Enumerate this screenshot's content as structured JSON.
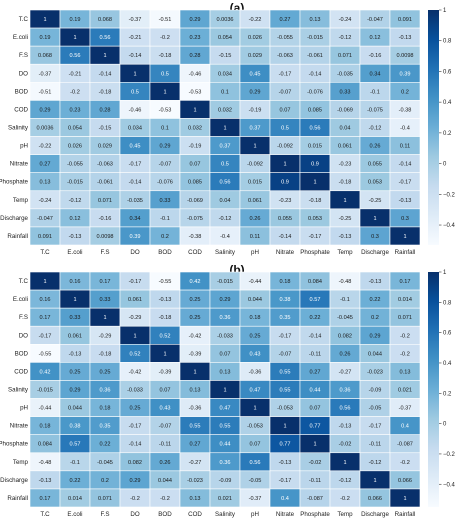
{
  "chart_data": [
    {
      "type": "heatmap",
      "panel_label": "(a)",
      "labels": [
        "T.C",
        "E.coli",
        "F.S",
        "DO",
        "BOD",
        "COD",
        "Salinity",
        "pH",
        "Nitrate",
        "Phosphate",
        "Temp",
        "Discharge",
        "Rainfall"
      ],
      "matrix": [
        [
          1,
          0.19,
          0.068,
          -0.37,
          -0.51,
          0.29,
          0.0036,
          -0.22,
          0.27,
          0.13,
          -0.24,
          -0.047,
          0.091
        ],
        [
          0.19,
          1,
          0.56,
          -0.21,
          -0.2,
          0.23,
          0.054,
          0.026,
          -0.055,
          -0.015,
          -0.12,
          0.12,
          -0.13
        ],
        [
          0.068,
          0.56,
          1,
          -0.14,
          -0.18,
          0.28,
          -0.15,
          0.029,
          -0.063,
          -0.061,
          0.071,
          -0.16,
          0.0098
        ],
        [
          -0.37,
          -0.21,
          -0.14,
          1,
          0.5,
          -0.46,
          0.034,
          0.45,
          -0.17,
          -0.14,
          -0.035,
          0.34,
          0.39
        ],
        [
          -0.51,
          -0.2,
          -0.18,
          0.5,
          1,
          -0.53,
          0.1,
          0.29,
          -0.07,
          -0.076,
          0.33,
          -0.1,
          0.2
        ],
        [
          0.29,
          0.23,
          0.28,
          -0.46,
          -0.53,
          1,
          0.032,
          -0.19,
          0.07,
          0.085,
          -0.069,
          -0.075,
          -0.38
        ],
        [
          0.0036,
          0.054,
          -0.15,
          0.034,
          0.1,
          0.032,
          1,
          0.37,
          0.5,
          0.56,
          0.04,
          -0.12,
          -0.4
        ],
        [
          -0.22,
          0.026,
          0.029,
          0.45,
          0.29,
          -0.19,
          0.37,
          1,
          -0.092,
          0.015,
          0.061,
          0.26,
          0.11
        ],
        [
          0.27,
          -0.055,
          -0.063,
          -0.17,
          -0.07,
          0.07,
          0.5,
          -0.092,
          1,
          0.9,
          -0.23,
          0.055,
          -0.14
        ],
        [
          0.13,
          -0.015,
          -0.061,
          -0.14,
          -0.076,
          0.085,
          0.56,
          0.015,
          0.9,
          1,
          -0.18,
          0.053,
          -0.17
        ],
        [
          -0.24,
          -0.12,
          0.071,
          -0.035,
          0.33,
          -0.069,
          0.04,
          0.061,
          -0.23,
          -0.18,
          1,
          -0.25,
          -0.13
        ],
        [
          -0.047,
          0.12,
          -0.16,
          0.34,
          -0.1,
          -0.075,
          -0.12,
          0.26,
          0.055,
          0.053,
          -0.25,
          1,
          0.3
        ],
        [
          0.091,
          -0.13,
          0.0098,
          0.39,
          0.2,
          -0.38,
          -0.4,
          0.11,
          -0.14,
          -0.17,
          -0.13,
          0.3,
          1
        ]
      ],
      "colorbar": {
        "ticks": [
          1,
          0.8,
          0.6,
          0.4,
          0.2,
          0,
          -0.2,
          -0.4
        ],
        "range": [
          -0.53,
          1
        ]
      }
    },
    {
      "type": "heatmap",
      "panel_label": "(b)",
      "labels": [
        "T.C",
        "E.coli",
        "F.S",
        "DO",
        "BOD",
        "COD",
        "Salinity",
        "pH",
        "Nitrate",
        "Phosphate",
        "Temp",
        "Discharge",
        "Rainfall"
      ],
      "matrix": [
        [
          1,
          0.16,
          0.17,
          -0.17,
          -0.55,
          0.42,
          -0.015,
          -0.44,
          0.18,
          0.084,
          -0.48,
          -0.13,
          0.17
        ],
        [
          0.16,
          1,
          0.33,
          0.061,
          -0.13,
          0.25,
          0.29,
          0.044,
          0.38,
          0.57,
          -0.1,
          0.22,
          0.014
        ],
        [
          0.17,
          0.33,
          1,
          -0.29,
          -0.18,
          0.25,
          0.36,
          0.18,
          0.35,
          0.22,
          -0.045,
          0.2,
          0.071
        ],
        [
          -0.17,
          0.061,
          -0.29,
          1,
          0.52,
          -0.42,
          -0.033,
          0.25,
          -0.17,
          -0.14,
          0.082,
          0.29,
          -0.2
        ],
        [
          -0.55,
          -0.13,
          -0.18,
          0.52,
          1,
          -0.39,
          0.07,
          0.43,
          -0.07,
          -0.11,
          0.26,
          0.044,
          -0.2
        ],
        [
          0.42,
          0.25,
          0.25,
          -0.42,
          -0.39,
          1,
          0.13,
          -0.36,
          0.55,
          0.27,
          -0.27,
          -0.023,
          0.13
        ],
        [
          -0.015,
          0.29,
          0.36,
          -0.033,
          0.07,
          0.13,
          1,
          0.47,
          0.55,
          0.44,
          0.36,
          -0.09,
          0.021
        ],
        [
          -0.44,
          0.044,
          0.18,
          0.25,
          0.43,
          -0.36,
          0.47,
          1,
          -0.053,
          0.07,
          0.56,
          -0.05,
          -0.37
        ],
        [
          0.18,
          0.38,
          0.35,
          -0.17,
          -0.07,
          0.55,
          0.55,
          -0.053,
          1,
          0.77,
          -0.13,
          -0.17,
          0.4
        ],
        [
          0.084,
          0.57,
          0.22,
          -0.14,
          -0.11,
          0.27,
          0.44,
          0.07,
          0.77,
          1,
          -0.02,
          -0.11,
          -0.087
        ],
        [
          -0.48,
          -0.1,
          -0.045,
          0.082,
          0.26,
          -0.27,
          0.36,
          0.56,
          -0.13,
          -0.02,
          1,
          -0.12,
          -0.2
        ],
        [
          -0.13,
          0.22,
          0.2,
          0.29,
          0.044,
          -0.023,
          -0.09,
          -0.05,
          -0.17,
          -0.11,
          -0.12,
          1,
          0.066
        ],
        [
          0.17,
          0.014,
          0.071,
          -0.2,
          -0.2,
          0.13,
          0.021,
          -0.37,
          0.4,
          -0.087,
          -0.2,
          0.066,
          1
        ]
      ],
      "colorbar": {
        "ticks": [
          1,
          0.8,
          0.6,
          0.4,
          0.2,
          0,
          -0.2,
          -0.4
        ],
        "range": [
          -0.55,
          1
        ]
      }
    }
  ]
}
